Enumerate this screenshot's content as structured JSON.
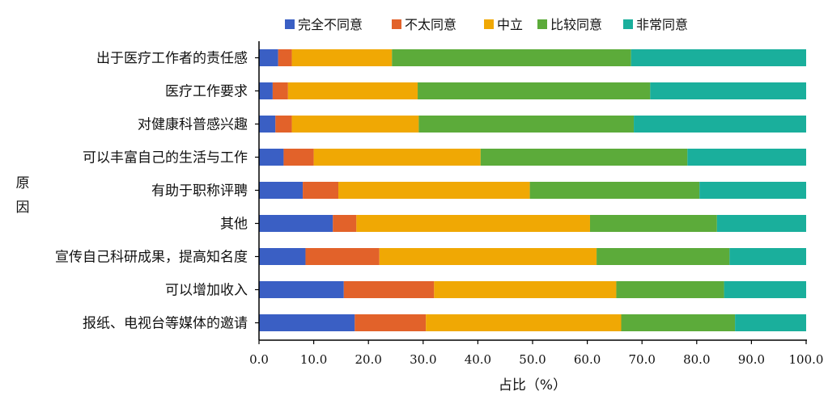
{
  "chart_data": {
    "type": "stacked-bar-horizontal",
    "title": "",
    "xlabel": "占比（%）",
    "ylabel": "原因",
    "xlim": [
      0,
      100
    ],
    "xticks": [
      "0.0",
      "10.0",
      "20.0",
      "30.0",
      "40.0",
      "50.0",
      "60.0",
      "70.0",
      "80.0",
      "90.0",
      "100.0"
    ],
    "legend_position": "top",
    "categories": [
      "出于医疗工作者的责任感",
      "医疗工作要求",
      "对健康科普感兴趣",
      "可以丰富自己的生活与工作",
      "有助于职称评聘",
      "其他",
      "宣传自己科研成果，提高知名度",
      "可以增加收入",
      "报纸、电视台等媒体的邀请"
    ],
    "series": [
      {
        "name": "完全不同意",
        "color": "#3a5fc4",
        "values": [
          3.5,
          2.5,
          3.0,
          4.5,
          8.0,
          13.5,
          8.5,
          15.5,
          17.5
        ]
      },
      {
        "name": "不太同意",
        "color": "#e2622a",
        "values": [
          2.5,
          2.8,
          3.0,
          5.5,
          6.5,
          4.3,
          13.5,
          16.5,
          13.0
        ]
      },
      {
        "name": "中立",
        "color": "#f0a804",
        "values": [
          18.3,
          23.7,
          23.2,
          30.5,
          35.0,
          42.7,
          39.7,
          33.3,
          35.7
        ]
      },
      {
        "name": "比较同意",
        "color": "#5cab3a",
        "values": [
          43.7,
          42.5,
          39.3,
          37.8,
          31.0,
          23.2,
          24.3,
          19.7,
          20.8
        ]
      },
      {
        "name": "非常同意",
        "color": "#1aaf9c",
        "values": [
          32.0,
          28.5,
          31.5,
          21.7,
          19.5,
          16.3,
          14.0,
          15.0,
          13.0
        ]
      }
    ]
  }
}
